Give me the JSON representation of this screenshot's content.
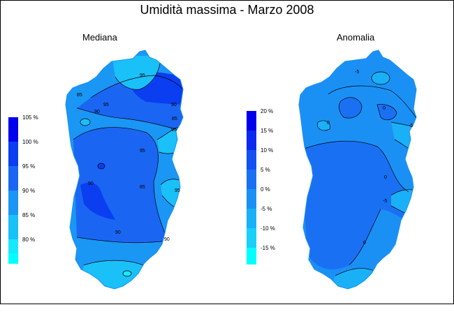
{
  "title": "Umidità massima - Marzo 2008",
  "panels": {
    "left": {
      "title": "Mediana",
      "legend": [
        {
          "label": "105 %",
          "color": "#0000ee"
        },
        {
          "label": "100 %",
          "color": "#0a3ef0"
        },
        {
          "label": "95 %",
          "color": "#1a66f2"
        },
        {
          "label": "90 %",
          "color": "#1a96f5"
        },
        {
          "label": "85 %",
          "color": "#1ac0f8"
        },
        {
          "label": "80 %",
          "color": "#18e8fb"
        },
        {
          "label": "",
          "color": "#00ffff"
        }
      ],
      "contour_labels": [
        "95",
        "85",
        "95",
        "90",
        "90",
        "85",
        "95",
        "95",
        "90",
        "85",
        "95",
        "90",
        "90"
      ]
    },
    "right": {
      "title": "Anomalia",
      "legend": [
        {
          "label": "20 %",
          "color": "#0000ee"
        },
        {
          "label": "15 %",
          "color": "#0a2af0"
        },
        {
          "label": "10 %",
          "color": "#1250f2"
        },
        {
          "label": "5 %",
          "color": "#1a70f3"
        },
        {
          "label": "0 %",
          "color": "#1a90f5"
        },
        {
          "label": "-5 %",
          "color": "#1ab0f7"
        },
        {
          "label": "-10 %",
          "color": "#18d0f9"
        },
        {
          "label": "-15 %",
          "color": "#00ffff"
        }
      ],
      "contour_labels": [
        "-5",
        "0",
        "0",
        "-5",
        "0",
        "-5",
        "0"
      ]
    }
  }
}
